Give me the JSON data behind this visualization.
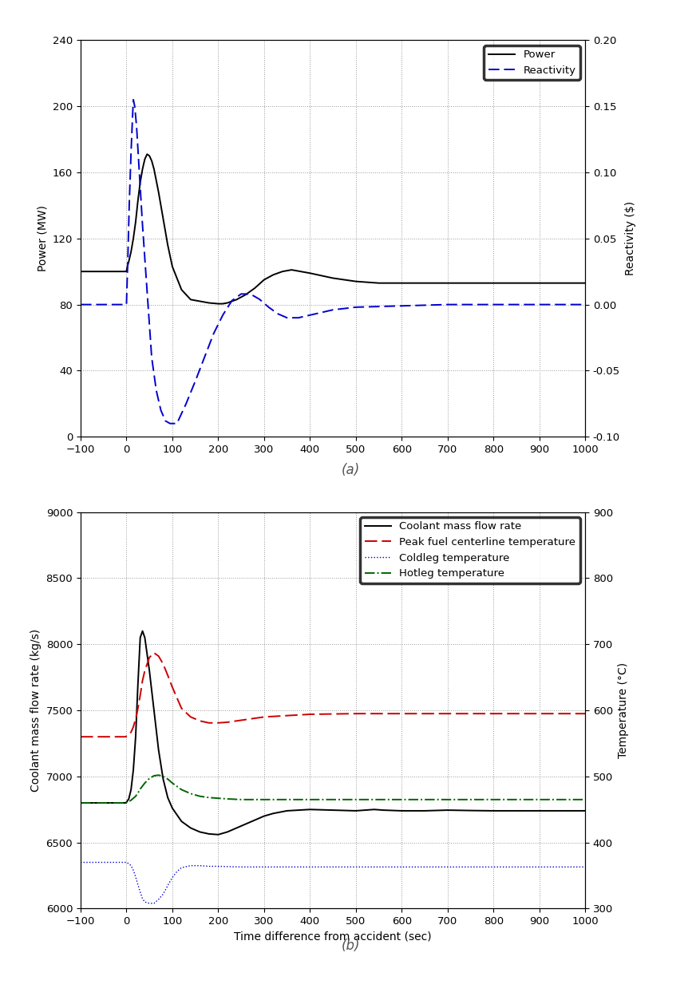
{
  "panel_a": {
    "ylabel_left": "Power (MW)",
    "ylabel_right": "Reactivity ($)",
    "xlim": [
      -100,
      1000
    ],
    "ylim_left": [
      0,
      240
    ],
    "ylim_right": [
      -0.1,
      0.2
    ],
    "yticks_left": [
      0,
      40,
      80,
      120,
      160,
      200,
      240
    ],
    "yticks_right": [
      -0.1,
      -0.05,
      0.0,
      0.05,
      0.1,
      0.15,
      0.2
    ],
    "xticks": [
      -100,
      0,
      100,
      200,
      300,
      400,
      500,
      600,
      700,
      800,
      900,
      1000
    ],
    "power_color": "#000000",
    "reactivity_color": "#0000cc"
  },
  "panel_b": {
    "xlabel": "Time difference from accident (sec)",
    "ylabel_left": "Coolant mass flow rate (kg/s)",
    "ylabel_right": "Temperature (°C)",
    "xlim": [
      -100,
      1000
    ],
    "ylim_left": [
      6000,
      9000
    ],
    "ylim_right": [
      300,
      900
    ],
    "yticks_left": [
      6000,
      6500,
      7000,
      7500,
      8000,
      8500,
      9000
    ],
    "yticks_right": [
      300,
      400,
      500,
      600,
      700,
      800,
      900
    ],
    "xticks": [
      -100,
      0,
      100,
      200,
      300,
      400,
      500,
      600,
      700,
      800,
      900,
      1000
    ],
    "flowrate_color": "#000000",
    "peak_fuel_color": "#cc0000",
    "coldleg_color": "#0000cc",
    "hotleg_color": "#006600"
  }
}
